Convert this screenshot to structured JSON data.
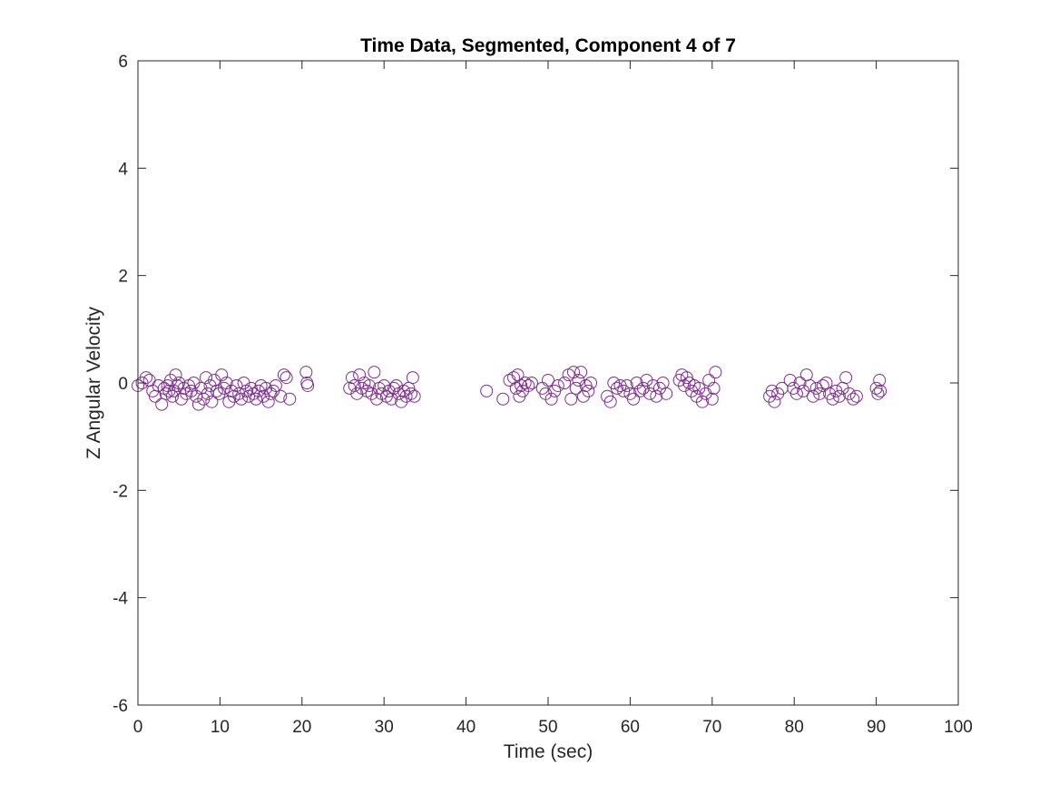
{
  "chart_data": {
    "type": "scatter",
    "title": "Time Data, Segmented, Component 4 of 7",
    "xlabel": "Time (sec)",
    "ylabel": "Z Angular Velocity",
    "xlim": [
      0,
      100
    ],
    "ylim": [
      -6,
      6
    ],
    "xticks": [
      "0",
      "10",
      "20",
      "30",
      "40",
      "50",
      "60",
      "70",
      "80",
      "90",
      "100"
    ],
    "yticks": [
      "6",
      "4",
      "2",
      "0",
      "-2",
      "-4",
      "-6"
    ],
    "grid": false,
    "legend": "none",
    "marker": "open-circle",
    "color": "#7E2F8E",
    "series": [
      {
        "x": [
          0.0,
          0.5,
          1.0,
          1.4,
          1.8,
          2.1,
          2.5,
          2.9,
          3.2,
          3.4,
          3.6,
          3.8,
          4.0,
          4.2,
          4.4,
          4.6,
          4.8,
          5.0,
          5.3,
          5.6,
          5.9,
          6.2,
          6.5,
          6.8,
          7.1,
          7.4,
          7.7,
          8.0,
          8.3,
          8.5,
          8.8,
          9.0,
          9.3,
          9.6,
          9.9,
          10.2,
          10.5,
          10.8,
          11.1,
          11.4,
          11.7,
          12.0,
          12.3,
          12.6,
          12.9,
          13.2,
          13.5,
          13.8,
          14.1,
          14.4,
          14.7,
          15.0,
          15.3,
          15.6,
          15.9,
          16.2,
          16.5,
          16.8,
          17.4,
          17.8,
          18.1,
          18.5,
          20.5,
          20.6,
          20.7
        ],
        "y": [
          -0.05,
          0.0,
          0.1,
          0.05,
          -0.15,
          -0.25,
          -0.05,
          -0.4,
          -0.1,
          -0.2,
          -0.05,
          -0.15,
          0.05,
          -0.25,
          -0.15,
          0.15,
          -0.05,
          0.0,
          -0.3,
          -0.1,
          -0.2,
          -0.05,
          -0.15,
          0.0,
          -0.25,
          -0.4,
          -0.1,
          -0.3,
          0.1,
          -0.2,
          -0.05,
          -0.35,
          0.05,
          -0.15,
          -0.2,
          0.15,
          -0.1,
          0.0,
          -0.35,
          -0.15,
          -0.25,
          -0.05,
          -0.2,
          -0.3,
          0.0,
          -0.15,
          -0.25,
          -0.1,
          -0.2,
          -0.3,
          -0.15,
          -0.05,
          -0.25,
          -0.1,
          -0.35,
          -0.2,
          -0.15,
          -0.05,
          -0.25,
          0.15,
          0.1,
          -0.3,
          0.2,
          0.0,
          -0.05
        ]
      },
      {
        "x": [
          25.8,
          26.1,
          26.4,
          26.7,
          27.0,
          27.3,
          27.6,
          27.9,
          28.2,
          28.5,
          28.8,
          29.1,
          29.4,
          29.7,
          30.0,
          30.3,
          30.6,
          30.9,
          31.2,
          31.5,
          31.8,
          32.1,
          32.4,
          32.7,
          33.0,
          33.3,
          33.5,
          33.7
        ],
        "y": [
          -0.1,
          0.1,
          -0.05,
          -0.2,
          0.15,
          -0.1,
          0.0,
          -0.15,
          -0.05,
          -0.2,
          0.2,
          -0.3,
          -0.1,
          -0.2,
          -0.05,
          -0.25,
          -0.15,
          -0.3,
          -0.1,
          -0.05,
          -0.2,
          -0.35,
          -0.15,
          -0.25,
          -0.1,
          -0.2,
          0.1,
          -0.25
        ]
      },
      {
        "x": [
          42.5,
          44.5,
          45.3,
          45.8,
          46.1,
          46.3,
          46.5,
          46.7,
          46.9,
          47.2,
          47.6,
          48.0,
          49.3,
          49.7,
          50.0,
          50.4,
          50.8,
          51.2,
          52.0,
          52.5,
          52.8,
          53.1,
          53.4,
          53.7,
          54.0,
          54.3,
          54.6,
          54.9,
          55.2
        ],
        "y": [
          -0.15,
          -0.3,
          0.05,
          0.1,
          -0.1,
          0.15,
          -0.25,
          -0.05,
          -0.15,
          0.0,
          -0.05,
          0.0,
          -0.1,
          -0.2,
          0.05,
          -0.3,
          -0.15,
          -0.05,
          0.0,
          0.15,
          -0.3,
          0.2,
          -0.1,
          0.05,
          0.2,
          -0.25,
          -0.05,
          -0.15,
          0.0
        ]
      },
      {
        "x": [
          57.2,
          57.6,
          58.0,
          58.4,
          58.8,
          59.2,
          59.6,
          60.0,
          60.4,
          60.8,
          61.2,
          61.6,
          62.0,
          62.4,
          62.8,
          63.2,
          63.6,
          64.0,
          64.4
        ],
        "y": [
          -0.25,
          -0.35,
          0.0,
          -0.1,
          -0.05,
          -0.15,
          -0.05,
          -0.2,
          -0.3,
          0.0,
          -0.15,
          -0.1,
          0.05,
          -0.2,
          -0.05,
          -0.25,
          -0.1,
          0.0,
          -0.2
        ]
      },
      {
        "x": [
          66.0,
          66.3,
          66.6,
          66.9,
          67.2,
          67.5,
          67.8,
          68.1,
          68.4,
          68.8,
          69.2,
          69.6,
          70.0,
          70.2,
          70.4
        ],
        "y": [
          0.05,
          0.15,
          -0.05,
          0.1,
          0.0,
          -0.15,
          -0.05,
          -0.25,
          -0.1,
          -0.35,
          -0.2,
          0.05,
          -0.3,
          -0.1,
          0.2
        ]
      },
      {
        "x": [
          77.0,
          77.3,
          77.6,
          78.0,
          78.5,
          79.5,
          79.9,
          80.3,
          80.7,
          81.1,
          81.5,
          81.9,
          82.3,
          82.7,
          83.1,
          83.5,
          83.9,
          84.3,
          84.7,
          85.1,
          85.5,
          85.9,
          86.3,
          86.7,
          87.2,
          87.6,
          90.0,
          90.2,
          90.4,
          90.5
        ],
        "y": [
          -0.25,
          -0.15,
          -0.35,
          -0.2,
          -0.1,
          0.05,
          -0.1,
          -0.2,
          0.0,
          -0.15,
          0.15,
          -0.05,
          -0.25,
          -0.1,
          -0.2,
          -0.05,
          0.0,
          -0.2,
          -0.3,
          -0.15,
          -0.25,
          -0.1,
          0.1,
          -0.2,
          -0.3,
          -0.25,
          -0.1,
          -0.2,
          0.05,
          -0.15
        ]
      }
    ]
  }
}
